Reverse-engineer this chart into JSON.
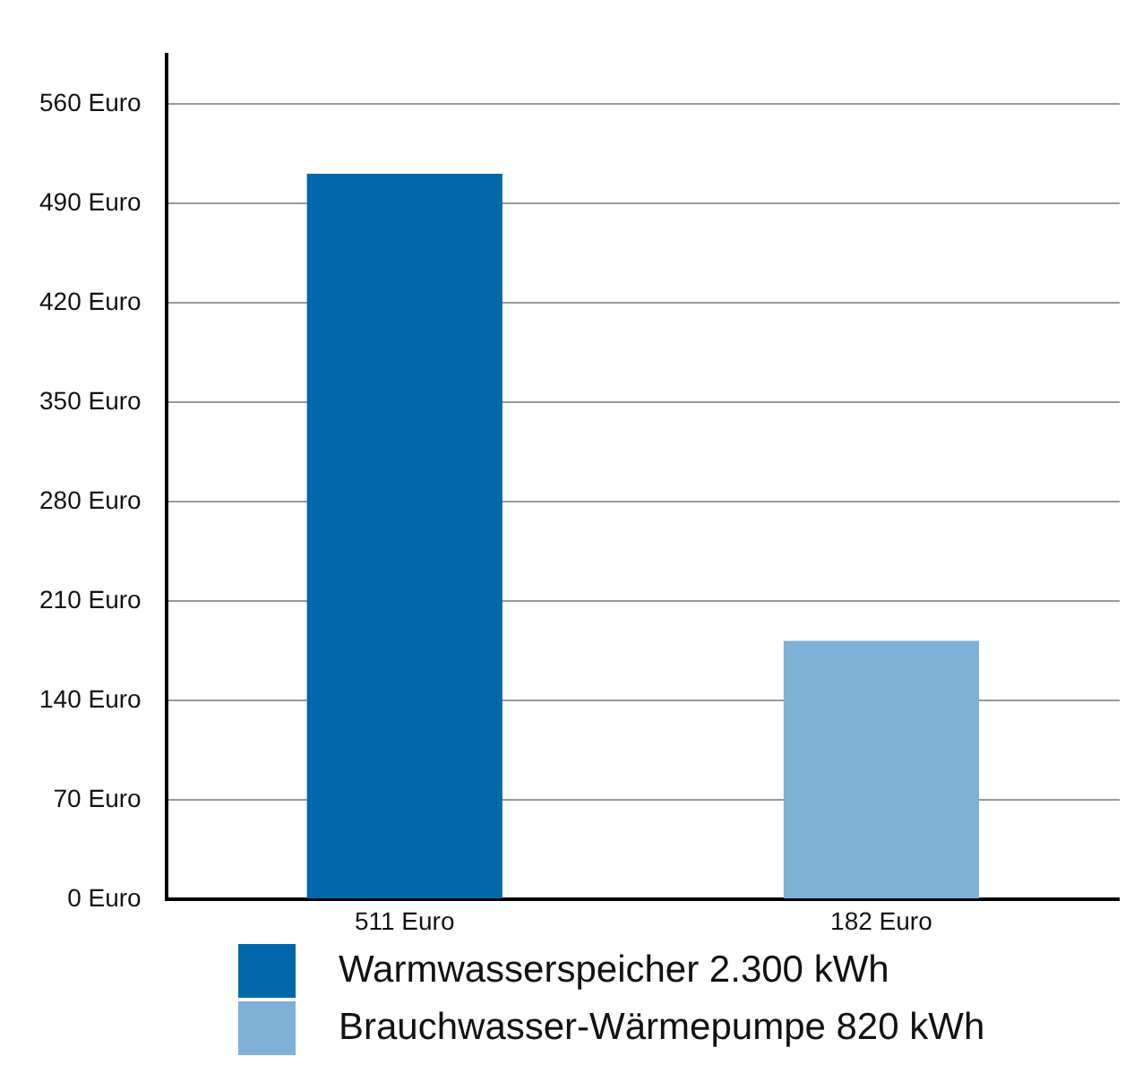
{
  "chart_data": {
    "type": "bar",
    "categories": [
      null,
      null
    ],
    "series": [
      {
        "name": "Warmwasserspeicher 2.300 kWh",
        "color": "#0068a8",
        "values": [
          511,
          null
        ],
        "value_labels": [
          "511 Euro",
          null
        ]
      },
      {
        "name": "Brauchwasser-Wärmepumpe 820 kWh",
        "color": "#7fb0d6",
        "values": [
          null,
          182
        ],
        "value_labels": [
          null,
          "182 Euro"
        ]
      }
    ],
    "ylim": [
      0,
      595
    ],
    "yticks": [
      {
        "value": 0,
        "label": "0 Euro"
      },
      {
        "value": 70,
        "label": "70 Euro"
      },
      {
        "value": 140,
        "label": "140 Euro"
      },
      {
        "value": 210,
        "label": "210 Euro"
      },
      {
        "value": 280,
        "label": "280 Euro"
      },
      {
        "value": 350,
        "label": "350 Euro"
      },
      {
        "value": 420,
        "label": "420 Euro"
      },
      {
        "value": 490,
        "label": "490 Euro"
      },
      {
        "value": 560,
        "label": "560 Euro"
      }
    ],
    "grid": "y",
    "legend": "bottom"
  }
}
